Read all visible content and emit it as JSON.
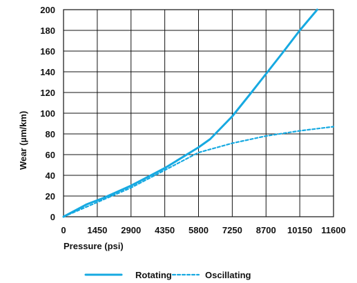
{
  "chart_data": {
    "type": "line",
    "title": "",
    "xlabel": "Pressure (psi)",
    "ylabel": "Wear (µm/km)",
    "xlim": [
      0,
      11600
    ],
    "ylim": [
      0,
      200
    ],
    "x_ticks": [
      0,
      1450,
      2900,
      4350,
      5800,
      7250,
      8700,
      10150,
      11600
    ],
    "y_ticks": [
      0,
      20,
      40,
      60,
      80,
      100,
      120,
      140,
      160,
      180,
      200
    ],
    "grid": true,
    "legend_position": "bottom-center",
    "series": [
      {
        "name": "Rotating",
        "color": "#16a9e1",
        "style": "solid",
        "points": [
          [
            0,
            0
          ],
          [
            1000,
            12
          ],
          [
            1700,
            18
          ],
          [
            2900,
            30
          ],
          [
            4350,
            47
          ],
          [
            5800,
            67
          ],
          [
            6300,
            75
          ],
          [
            7250,
            97
          ],
          [
            8000,
            118
          ],
          [
            8700,
            138
          ],
          [
            9400,
            158
          ],
          [
            10150,
            180
          ],
          [
            10900,
            200
          ]
        ]
      },
      {
        "name": "Oscillating",
        "color": "#16a9e1",
        "style": "dashed",
        "points": [
          [
            0,
            0
          ],
          [
            1450,
            14
          ],
          [
            2900,
            28
          ],
          [
            4350,
            45
          ],
          [
            5800,
            62
          ],
          [
            7250,
            71
          ],
          [
            8700,
            78
          ],
          [
            10150,
            83
          ],
          [
            11600,
            87
          ]
        ]
      }
    ]
  }
}
